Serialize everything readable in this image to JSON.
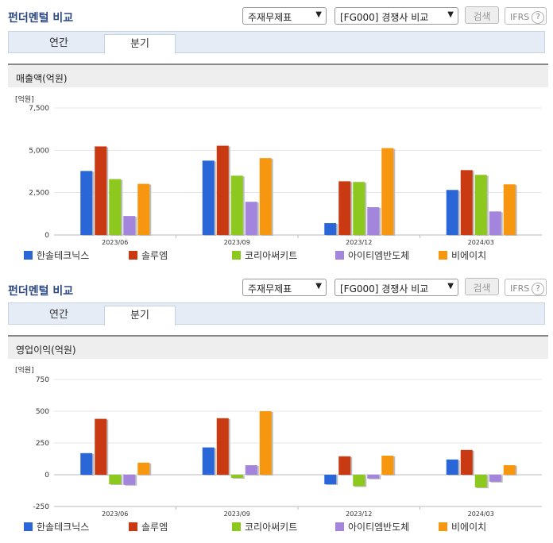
{
  "widgets": [
    {
      "title": "펀더멘털 비교",
      "select1": "주재무제표",
      "select2": "[FG000] 경쟁사 비교",
      "search_label": "검색",
      "ifrs_label": "IFRS",
      "help_icon": "?",
      "tabs": [
        "연간",
        "분기"
      ],
      "active_tab": 1,
      "panel_title": "매출액(억원)"
    },
    {
      "title": "펀더멘털 비교",
      "select1": "주재무제표",
      "select2": "[FG000] 경쟁사 비교",
      "search_label": "검색",
      "ifrs_label": "IFRS",
      "help_icon": "?",
      "tabs": [
        "연간",
        "분기"
      ],
      "active_tab": 1,
      "panel_title": "영업이익(억원)"
    }
  ],
  "colors": [
    "#2a66d8",
    "#c93a12",
    "#8cc81e",
    "#a385de",
    "#f7960f"
  ],
  "chart_data": [
    {
      "type": "bar",
      "unit_label": "[억원]",
      "categories": [
        "2023/06",
        "2023/09",
        "2023/12",
        "2024/03"
      ],
      "ylim": [
        0,
        7500
      ],
      "yticks": [
        0,
        2500,
        5000,
        7500
      ],
      "ytick_labels": [
        "0",
        "2,500",
        "5,000",
        "7,500"
      ],
      "series": [
        {
          "name": "한솔테크닉스",
          "values": [
            3780,
            4390,
            700,
            2660
          ]
        },
        {
          "name": "솔루엠",
          "values": [
            5230,
            5270,
            3170,
            3830
          ]
        },
        {
          "name": "코리아써키트",
          "values": [
            3300,
            3500,
            3130,
            3550
          ]
        },
        {
          "name": "아이티엠반도체",
          "values": [
            1120,
            1960,
            1640,
            1390
          ]
        },
        {
          "name": "비에이치",
          "values": [
            3020,
            4540,
            5130,
            2990
          ]
        }
      ]
    },
    {
      "type": "bar",
      "unit_label": "[억원]",
      "categories": [
        "2023/06",
        "2023/09",
        "2023/12",
        "2024/03"
      ],
      "ylim": [
        -250,
        750
      ],
      "yticks": [
        -250,
        0,
        250,
        500,
        750
      ],
      "ytick_labels": [
        "-250",
        "0",
        "250",
        "500",
        "750"
      ],
      "series": [
        {
          "name": "한솔테크닉스",
          "values": [
            170,
            215,
            -75,
            120
          ]
        },
        {
          "name": "솔루엠",
          "values": [
            440,
            445,
            145,
            195
          ]
        },
        {
          "name": "코리아써키트",
          "values": [
            -75,
            -25,
            -90,
            -100
          ]
        },
        {
          "name": "아이티엠반도체",
          "values": [
            -80,
            75,
            -30,
            -55
          ]
        },
        {
          "name": "비에이치",
          "values": [
            95,
            500,
            150,
            75
          ]
        }
      ]
    }
  ]
}
